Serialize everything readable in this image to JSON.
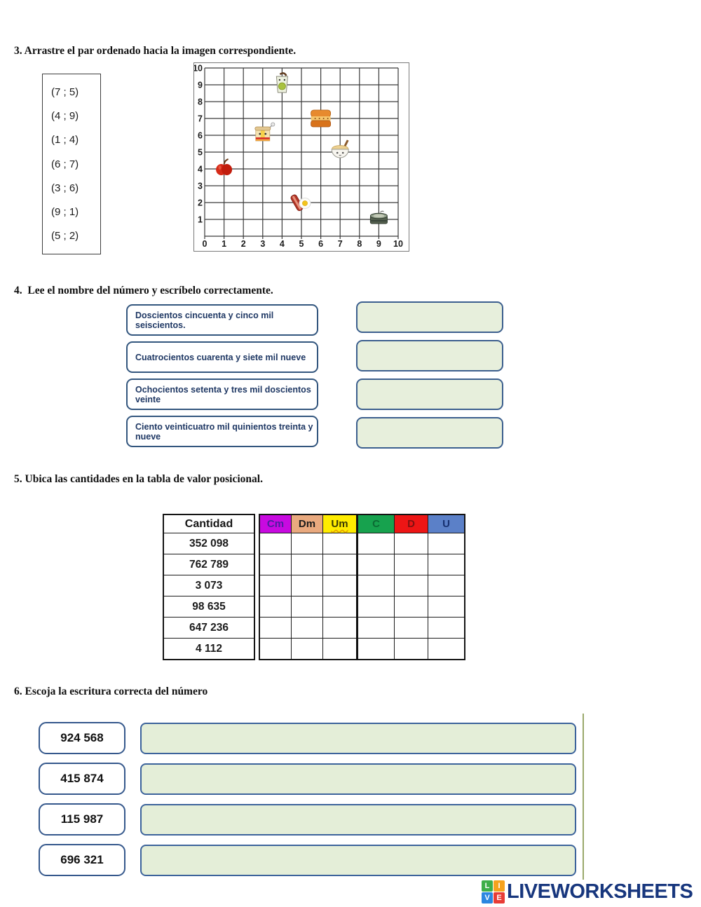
{
  "section3": {
    "title": "3. Arrastre el par ordenado hacia la imagen correspondiente.",
    "pairs": [
      "(7 ; 5)",
      "(4 ; 9)",
      "(1 ; 4)",
      "(6 ; 7)",
      "(3 ; 6)",
      "(9 ; 1)",
      "(5 ; 2)"
    ],
    "grid": {
      "x_ticks": [
        "0",
        "1",
        "2",
        "3",
        "4",
        "5",
        "6",
        "7",
        "8",
        "9",
        "10"
      ],
      "y_ticks": [
        "1",
        "2",
        "3",
        "4",
        "5",
        "6",
        "7",
        "8",
        "9",
        "10"
      ],
      "points": [
        {
          "x": 4,
          "y": 9,
          "icon": "juice-glass"
        },
        {
          "x": 6,
          "y": 7,
          "icon": "sandwich"
        },
        {
          "x": 3,
          "y": 6,
          "icon": "noodle-cup"
        },
        {
          "x": 7,
          "y": 5,
          "icon": "soup-bowl"
        },
        {
          "x": 1,
          "y": 4,
          "icon": "apple"
        },
        {
          "x": 5,
          "y": 2,
          "icon": "bacon-egg"
        },
        {
          "x": 9,
          "y": 1,
          "icon": "pot"
        }
      ]
    }
  },
  "section4": {
    "title": "4.  Lee el nombre del número y escríbelo correctamente.",
    "items": [
      {
        "label": "Doscientos cincuenta y cinco mil seiscientos.",
        "answer": ""
      },
      {
        "label": "Cuatrocientos cuarenta y siete mil nueve",
        "answer": ""
      },
      {
        "label": "Ochocientos setenta y tres mil doscientos veinte",
        "answer": ""
      },
      {
        "label": "Ciento veinticuatro mil quinientos treinta y nueve",
        "answer": ""
      }
    ]
  },
  "section5": {
    "title": "5. Ubica las cantidades en la tabla de valor posicional.",
    "cantidad_header": "Cantidad",
    "columns": [
      {
        "label": "Cm",
        "bg": "#c80ae0",
        "color": "#4a1e9e",
        "underline": false
      },
      {
        "label": "Dm",
        "bg": "#e9a97e",
        "color": "#1a1a1a",
        "underline": false
      },
      {
        "label": "Um",
        "bg": "#ffec00",
        "color": "#3a3a00",
        "underline": true
      },
      {
        "label": "C",
        "bg": "#17a24e",
        "color": "#0b6b33",
        "underline": false
      },
      {
        "label": "D",
        "bg": "#ed1515",
        "color": "#7e1111",
        "underline": false
      },
      {
        "label": "U",
        "bg": "#5b80c8",
        "color": "#173070",
        "underline": false
      }
    ],
    "rows": [
      "352 098",
      "762 789",
      "3 073",
      "98 635",
      "647 236",
      "4 112"
    ]
  },
  "section6": {
    "title": "6. Escoja la escritura correcta del número",
    "items": [
      {
        "number": "924 568"
      },
      {
        "number": "415 874"
      },
      {
        "number": "115 987"
      },
      {
        "number": "696 321"
      }
    ]
  },
  "footer": {
    "brand": "LIVEWORKSHEETS",
    "logo_letters": [
      {
        "ch": "L",
        "bg": "#3fae49"
      },
      {
        "ch": "I",
        "bg": "#f6a21d"
      },
      {
        "ch": "V",
        "bg": "#2b86e0"
      },
      {
        "ch": "E",
        "bg": "#e83c36"
      }
    ]
  }
}
